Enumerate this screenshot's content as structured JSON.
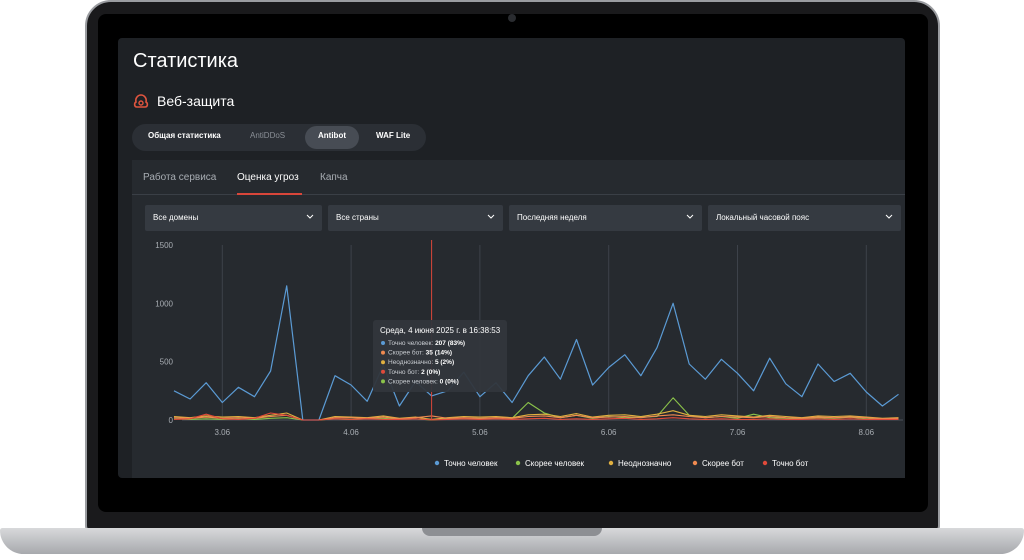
{
  "header": {
    "title": "Статистика",
    "section": "Веб-защита"
  },
  "tabs": [
    "Общая статистика",
    "AntiDDoS",
    "Antibot",
    "WAF Lite"
  ],
  "subtabs": [
    "Работа сервиса",
    "Оценка угроз",
    "Капча"
  ],
  "filters": [
    "Все домены",
    "Все страны",
    "Последняя неделя",
    "Локальный часовой пояс"
  ],
  "chart_data": {
    "type": "line",
    "categories": [
      null,
      null,
      null,
      "3.06",
      null,
      null,
      null,
      null,
      null,
      null,
      null,
      "4.06",
      null,
      null,
      null,
      null,
      null,
      null,
      null,
      "5.06",
      null,
      null,
      null,
      null,
      null,
      null,
      null,
      "6.06",
      null,
      null,
      null,
      null,
      null,
      null,
      null,
      "7.06",
      null,
      null,
      null,
      null,
      null,
      null,
      null,
      "8.06",
      null,
      null
    ],
    "series": [
      {
        "name": "Точно человек",
        "color": "#5b9bd5",
        "values": [
          250,
          180,
          320,
          150,
          280,
          200,
          420,
          1150,
          0,
          0,
          380,
          300,
          160,
          470,
          120,
          330,
          207,
          250,
          410,
          200,
          320,
          150,
          380,
          540,
          350,
          690,
          300,
          450,
          560,
          380,
          620,
          1000,
          480,
          350,
          520,
          400,
          250,
          530,
          310,
          200,
          480,
          330,
          400,
          240,
          120,
          220
        ]
      },
      {
        "name": "Скорее человек",
        "color": "#8bc34a",
        "values": [
          10,
          5,
          10,
          5,
          10,
          5,
          15,
          20,
          0,
          0,
          10,
          5,
          10,
          15,
          5,
          10,
          0,
          10,
          15,
          10,
          20,
          15,
          150,
          60,
          20,
          40,
          15,
          30,
          20,
          25,
          30,
          190,
          40,
          20,
          30,
          15,
          50,
          20,
          15,
          10,
          20,
          15,
          25,
          10,
          5,
          10
        ]
      },
      {
        "name": "Неоднозначно",
        "color": "#e0b040",
        "values": [
          30,
          20,
          35,
          25,
          30,
          20,
          40,
          60,
          0,
          0,
          30,
          25,
          20,
          35,
          15,
          25,
          5,
          20,
          30,
          25,
          30,
          20,
          45,
          50,
          30,
          55,
          25,
          40,
          45,
          30,
          50,
          80,
          40,
          30,
          45,
          35,
          25,
          40,
          30,
          20,
          35,
          30,
          35,
          25,
          15,
          20
        ]
      },
      {
        "name": "Скорее бот",
        "color": "#f08a50",
        "values": [
          20,
          15,
          25,
          15,
          20,
          15,
          30,
          40,
          0,
          0,
          20,
          20,
          15,
          25,
          10,
          20,
          35,
          15,
          20,
          15,
          20,
          15,
          30,
          35,
          20,
          40,
          20,
          25,
          30,
          20,
          35,
          45,
          30,
          20,
          30,
          25,
          20,
          30,
          20,
          15,
          25,
          20,
          25,
          20,
          10,
          15
        ]
      },
      {
        "name": "Точно бот",
        "color": "#e04a3a",
        "values": [
          5,
          10,
          50,
          10,
          5,
          15,
          60,
          40,
          0,
          0,
          10,
          5,
          10,
          5,
          5,
          10,
          2,
          5,
          10,
          5,
          10,
          5,
          10,
          15,
          5,
          10,
          5,
          10,
          15,
          5,
          10,
          20,
          10,
          5,
          10,
          5,
          5,
          10,
          5,
          5,
          10,
          5,
          10,
          5,
          5,
          5
        ]
      }
    ],
    "ylim": [
      0,
      1500
    ],
    "yticks": [
      0,
      500,
      1000,
      1500
    ],
    "grid": true,
    "legend": "bottom"
  },
  "tooltip": {
    "title": "Среда, 4 июня 2025 г. в 16:38:53",
    "items": [
      {
        "label": "Точно человек:",
        "value": "207 (83%)",
        "color": "#5b9bd5"
      },
      {
        "label": "Скорее бот:",
        "value": "35 (14%)",
        "color": "#f08a50"
      },
      {
        "label": "Неоднозначно:",
        "value": "5 (2%)",
        "color": "#e0b040"
      },
      {
        "label": "Точно бот:",
        "value": "2 (0%)",
        "color": "#e04a3a"
      },
      {
        "label": "Скорее человек:",
        "value": "0 (0%)",
        "color": "#8bc34a"
      }
    ]
  }
}
